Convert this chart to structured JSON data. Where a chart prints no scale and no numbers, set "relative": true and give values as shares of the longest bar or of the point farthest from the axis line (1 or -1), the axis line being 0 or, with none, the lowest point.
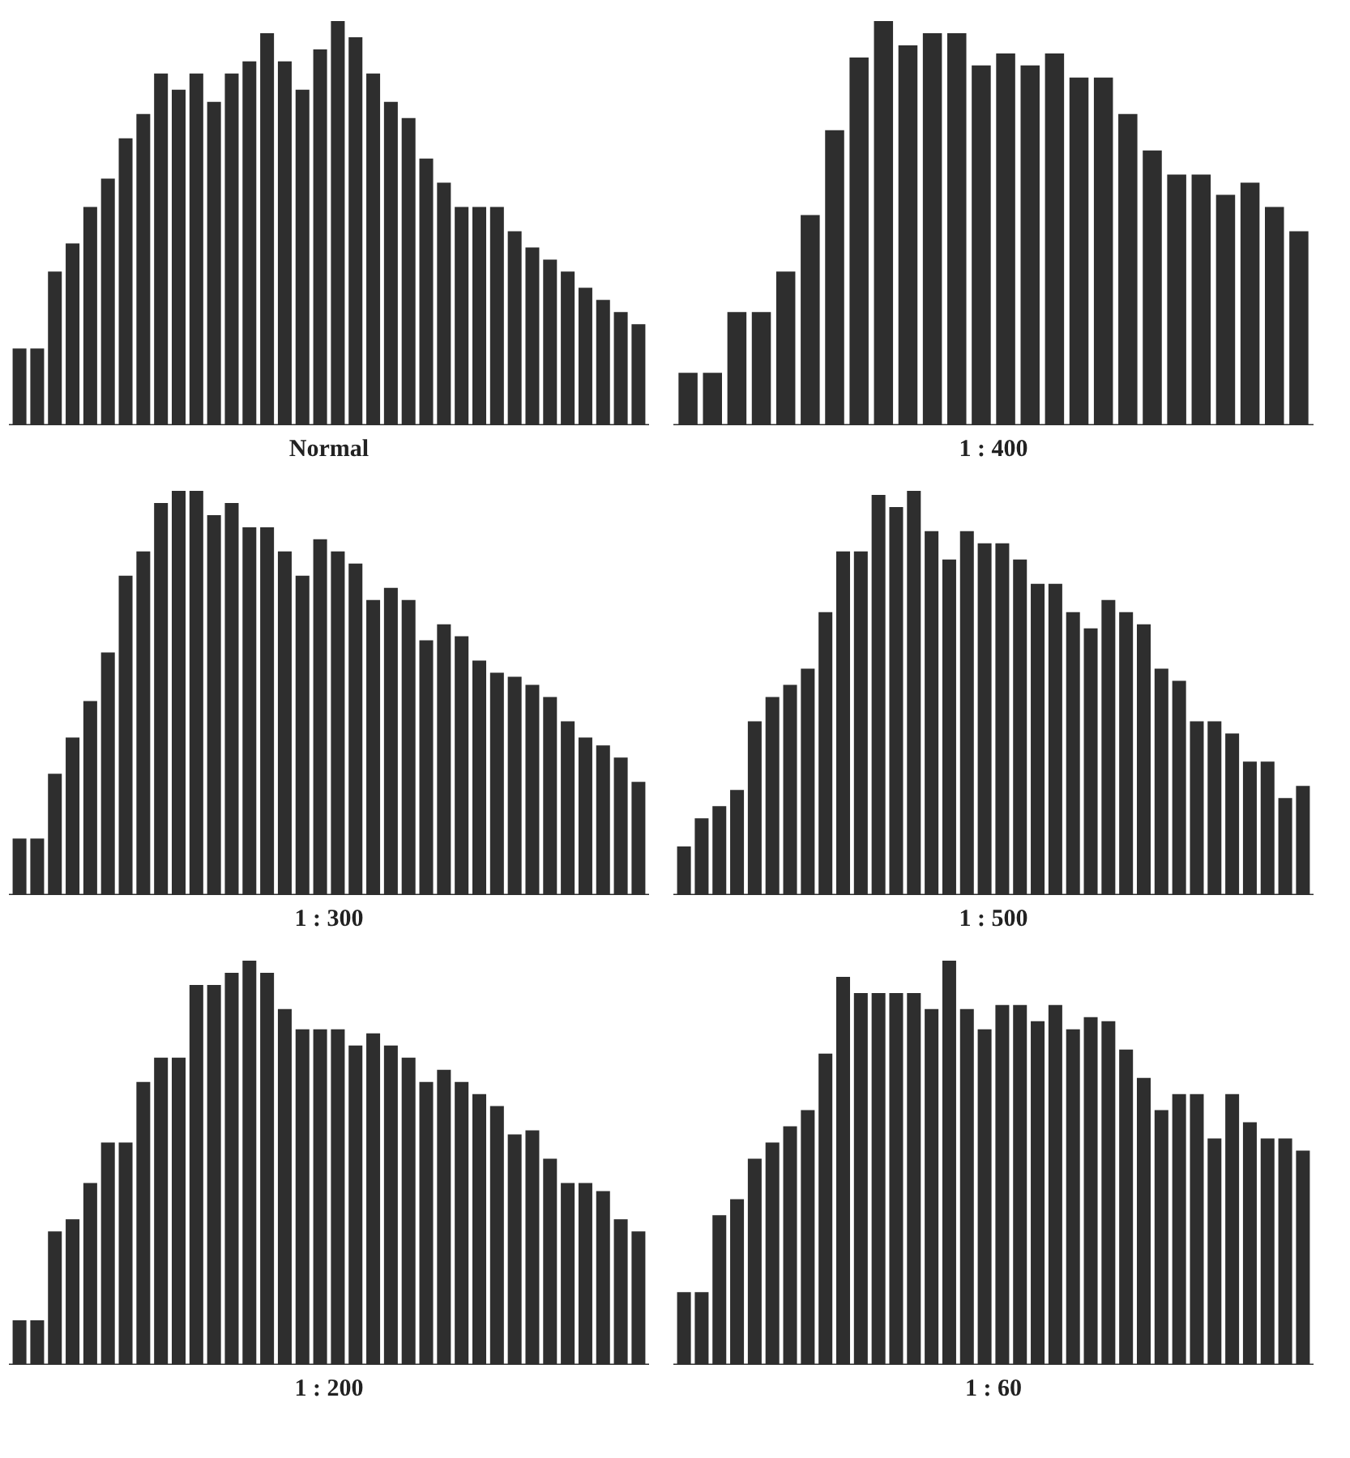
{
  "chart_data": [
    {
      "type": "bar",
      "title": "Normal",
      "relative": true,
      "color": "#2e2e2e",
      "categories": [
        null,
        null,
        null,
        null,
        null,
        null,
        null,
        null,
        null,
        null,
        null,
        null,
        null,
        null,
        null,
        null,
        null,
        null,
        null,
        null,
        null,
        null,
        null,
        null,
        null,
        null,
        null,
        null,
        null,
        null,
        null,
        null,
        null,
        null,
        null,
        null
      ],
      "values": [
        0.19,
        0.19,
        0.38,
        0.45,
        0.54,
        0.61,
        0.71,
        0.77,
        0.87,
        0.83,
        0.87,
        0.8,
        0.87,
        0.9,
        0.97,
        0.9,
        0.83,
        0.93,
        1,
        0.96,
        0.87,
        0.8,
        0.76,
        0.66,
        0.6,
        0.54,
        0.54,
        0.54,
        0.48,
        0.44,
        0.41,
        0.38,
        0.34,
        0.31,
        0.28,
        0.25
      ]
    },
    {
      "type": "bar",
      "title": "1 : 400",
      "relative": true,
      "color": "#2e2e2e",
      "categories": [
        null,
        null,
        null,
        null,
        null,
        null,
        null,
        null,
        null,
        null,
        null,
        null,
        null,
        null,
        null,
        null,
        null,
        null,
        null,
        null,
        null,
        null,
        null,
        null,
        null,
        null
      ],
      "values": [
        0.13,
        0.13,
        0.28,
        0.28,
        0.38,
        0.52,
        0.73,
        0.91,
        1,
        0.94,
        0.97,
        0.97,
        0.89,
        0.92,
        0.89,
        0.92,
        0.86,
        0.86,
        0.77,
        0.68,
        0.62,
        0.62,
        0.57,
        0.6,
        0.54,
        0.48
      ]
    },
    {
      "type": "bar",
      "title": "1 : 300",
      "relative": true,
      "color": "#2e2e2e",
      "categories": [
        null,
        null,
        null,
        null,
        null,
        null,
        null,
        null,
        null,
        null,
        null,
        null,
        null,
        null,
        null,
        null,
        null,
        null,
        null,
        null,
        null,
        null,
        null,
        null,
        null,
        null,
        null,
        null,
        null,
        null,
        null,
        null,
        null,
        null,
        null,
        null
      ],
      "values": [
        0.14,
        0.14,
        0.3,
        0.39,
        0.48,
        0.6,
        0.79,
        0.85,
        0.97,
        1,
        1,
        0.94,
        0.97,
        0.91,
        0.91,
        0.85,
        0.79,
        0.88,
        0.85,
        0.82,
        0.73,
        0.76,
        0.73,
        0.63,
        0.67,
        0.64,
        0.58,
        0.55,
        0.54,
        0.52,
        0.49,
        0.43,
        0.39,
        0.37,
        0.34,
        0.28
      ]
    },
    {
      "type": "bar",
      "title": "1 : 500",
      "relative": true,
      "color": "#2e2e2e",
      "categories": [
        null,
        null,
        null,
        null,
        null,
        null,
        null,
        null,
        null,
        null,
        null,
        null,
        null,
        null,
        null,
        null,
        null,
        null,
        null,
        null,
        null,
        null,
        null,
        null,
        null,
        null,
        null,
        null,
        null,
        null,
        null,
        null,
        null,
        null,
        null,
        null
      ],
      "values": [
        0.12,
        0.19,
        0.22,
        0.26,
        0.43,
        0.49,
        0.52,
        0.56,
        0.7,
        0.85,
        0.85,
        0.99,
        0.96,
        1,
        0.9,
        0.83,
        0.9,
        0.87,
        0.87,
        0.83,
        0.77,
        0.77,
        0.7,
        0.66,
        0.73,
        0.7,
        0.67,
        0.56,
        0.53,
        0.43,
        0.43,
        0.4,
        0.33,
        0.33,
        0.24,
        0.27
      ]
    },
    {
      "type": "bar",
      "title": "1 : 200",
      "relative": true,
      "color": "#2e2e2e",
      "categories": [
        null,
        null,
        null,
        null,
        null,
        null,
        null,
        null,
        null,
        null,
        null,
        null,
        null,
        null,
        null,
        null,
        null,
        null,
        null,
        null,
        null,
        null,
        null,
        null,
        null,
        null,
        null,
        null,
        null,
        null,
        null,
        null,
        null,
        null,
        null,
        null
      ],
      "values": [
        0.11,
        0.11,
        0.33,
        0.36,
        0.45,
        0.55,
        0.55,
        0.7,
        0.76,
        0.76,
        0.94,
        0.94,
        0.97,
        1,
        0.97,
        0.88,
        0.83,
        0.83,
        0.83,
        0.79,
        0.82,
        0.79,
        0.76,
        0.7,
        0.73,
        0.7,
        0.67,
        0.64,
        0.57,
        0.58,
        0.51,
        0.45,
        0.45,
        0.43,
        0.36,
        0.33
      ]
    },
    {
      "type": "bar",
      "title": "1 : 60",
      "relative": true,
      "color": "#2e2e2e",
      "categories": [
        null,
        null,
        null,
        null,
        null,
        null,
        null,
        null,
        null,
        null,
        null,
        null,
        null,
        null,
        null,
        null,
        null,
        null,
        null,
        null,
        null,
        null,
        null,
        null,
        null,
        null,
        null,
        null,
        null,
        null,
        null,
        null,
        null,
        null,
        null,
        null
      ],
      "values": [
        0.18,
        0.18,
        0.37,
        0.41,
        0.51,
        0.55,
        0.59,
        0.63,
        0.77,
        0.96,
        0.92,
        0.92,
        0.92,
        0.92,
        0.88,
        1,
        0.88,
        0.83,
        0.89,
        0.89,
        0.85,
        0.89,
        0.83,
        0.86,
        0.85,
        0.78,
        0.71,
        0.63,
        0.67,
        0.67,
        0.56,
        0.67,
        0.6,
        0.56,
        0.56,
        0.53
      ]
    }
  ]
}
